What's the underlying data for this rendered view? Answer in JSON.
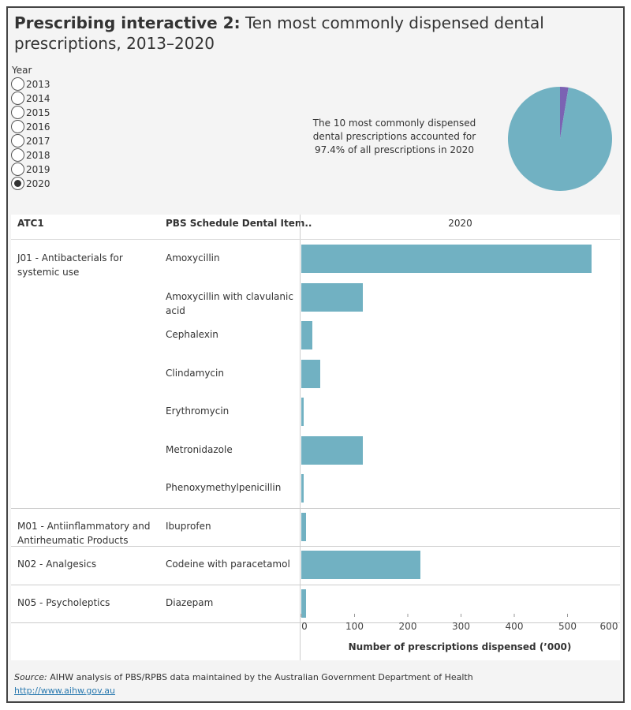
{
  "title": {
    "bold": "Prescribing interactive 2:",
    "rest": " Ten most commonly dispensed dental prescriptions, 2013–2020"
  },
  "year_filter": {
    "label": "Year",
    "options": [
      "2013",
      "2014",
      "2015",
      "2016",
      "2017",
      "2018",
      "2019",
      "2020"
    ],
    "selected": "2020"
  },
  "note": "The 10 most commonly dispensed dental prescriptions accounted for 97.4% of all prescriptions in 2020",
  "pie": {
    "type": "pie",
    "values": [
      97.4,
      2.6
    ],
    "colors": [
      "#71b1c2",
      "#7b62b3"
    ]
  },
  "table": {
    "col1": "ATC1",
    "col2": "PBS Schedule Dental Item..",
    "col3": "2020"
  },
  "chart_data": {
    "type": "bar",
    "orientation": "horizontal",
    "groups": [
      {
        "atc": "J01 - Antibacterials for systemic use",
        "items": [
          "Amoxycillin",
          "Amoxycillin with clavulanic acid",
          "Cephalexin",
          "Clindamycin",
          "Erythromycin",
          "Metronidazole",
          "Phenoxymethylpenicillin"
        ],
        "values": [
          545,
          116,
          21,
          36,
          4,
          116,
          4
        ]
      },
      {
        "atc": "M01 - Antiinflammatory and Antirheumatic Products",
        "items": [
          "Ibuprofen"
        ],
        "values": [
          9
        ]
      },
      {
        "atc": "N02 - Analgesics",
        "items": [
          "Codeine with paracetamol"
        ],
        "values": [
          224
        ]
      },
      {
        "atc": "N05 - Psycholeptics",
        "items": [
          "Diazepam"
        ],
        "values": [
          9
        ]
      }
    ],
    "xlabel": "Number of prescriptions dispensed (’000)",
    "xlim": [
      0,
      600
    ],
    "xticks": [
      "0",
      "100",
      "200",
      "300",
      "400",
      "500",
      "600"
    ],
    "bar_color": "#71b1c2"
  },
  "source": {
    "label": "Source:",
    "text": " AIHW analysis of PBS/RPBS data maintained by the Australian Government Department of Health",
    "link": "http://www.aihw.gov.au"
  }
}
